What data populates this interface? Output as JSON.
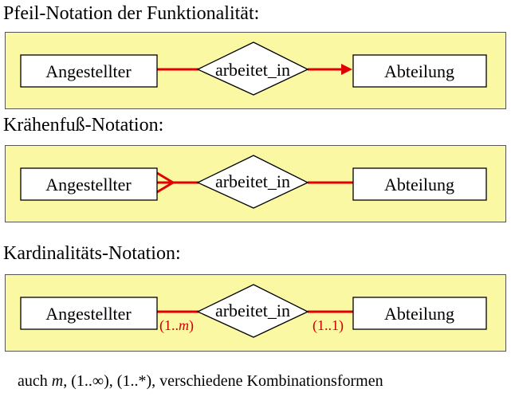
{
  "sections": [
    {
      "heading": "Pfeil-Notation der Funktionalität:",
      "left_entity": "Angestellter",
      "relationship": "arbeitet_in",
      "right_entity": "Abteilung",
      "style": "arrow"
    },
    {
      "heading": "Krähenfuß-Notation:",
      "left_entity": "Angestellter",
      "relationship": "arbeitet_in",
      "right_entity": "Abteilung",
      "style": "crowsfoot"
    },
    {
      "heading": "Kardinalitäts-Notation:",
      "left_entity": "Angestellter",
      "relationship": "arbeitet_in",
      "right_entity": "Abteilung",
      "style": "cardinality",
      "left_card_prefix": "(1..",
      "left_card_var": "m",
      "left_card_suffix": ")",
      "right_card": "(1..1)"
    }
  ],
  "footnote": {
    "part1": "auch ",
    "var": "m",
    "part2": ", (1..∞), (1..*), verschiedene Kombinationsformen"
  },
  "colors": {
    "panel_fill": "#fbf8a3",
    "connector": "#e00000",
    "cardinality_text": "#cc0000"
  }
}
